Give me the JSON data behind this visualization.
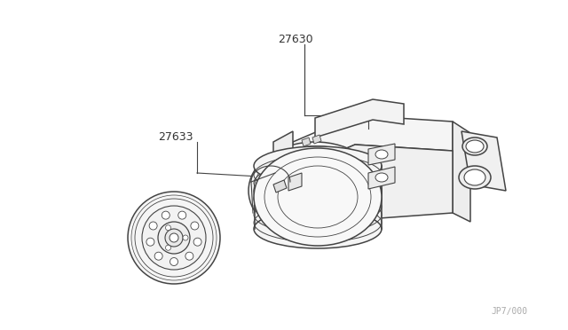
{
  "background_color": "#ffffff",
  "line_color": "#444444",
  "label_color": "#333333",
  "part_labels": [
    "27630",
    "27633"
  ],
  "ref_code": "JP7∕000",
  "figsize": [
    6.4,
    3.72
  ],
  "dpi": 100
}
